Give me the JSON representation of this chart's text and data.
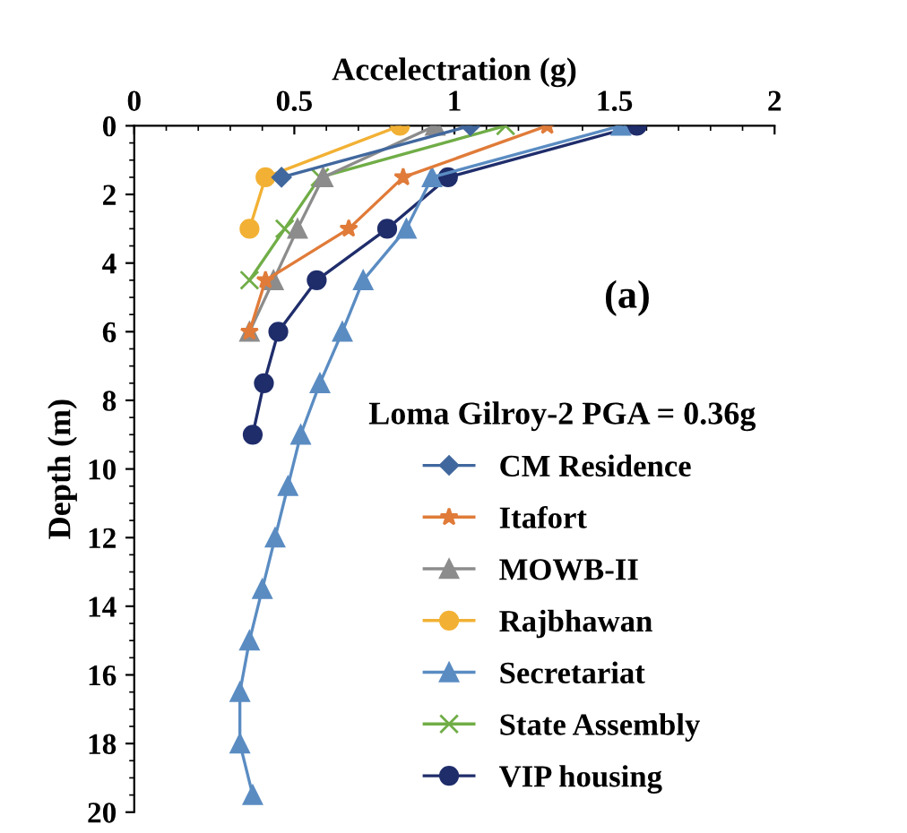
{
  "chart_data": {
    "type": "line",
    "xlabel": "Accelectration (g)",
    "ylabel": "Depth (m)",
    "legend_title": "Loma Gilroy-2 PGA = 0.36g",
    "annotations": [
      "(a)"
    ],
    "xlim": [
      0,
      2
    ],
    "xticks": [
      0,
      0.5,
      1,
      1.5,
      2
    ],
    "ylim": [
      20,
      0
    ],
    "yticks": [
      0,
      2,
      4,
      6,
      8,
      10,
      12,
      14,
      16,
      18,
      20
    ],
    "grid": false,
    "legend": "bottom right",
    "series": [
      {
        "name": "CM Residence",
        "color": "#41689e",
        "marker": "diamond",
        "x": [
          1.05,
          0.46
        ],
        "values": [
          0,
          1.5
        ]
      },
      {
        "name": "Itafort",
        "color": "#e07b39",
        "marker": "star",
        "x": [
          1.29,
          0.84,
          0.67,
          0.41,
          0.36
        ],
        "values": [
          0,
          1.5,
          3,
          4.5,
          6
        ]
      },
      {
        "name": "MOWB-II",
        "color": "#8c8c8c",
        "marker": "triangle",
        "x": [
          0.94,
          0.59,
          0.51,
          0.435,
          0.36
        ],
        "values": [
          0,
          1.5,
          3,
          4.5,
          6
        ]
      },
      {
        "name": "Rajbhawan",
        "color": "#f2b134",
        "marker": "circle",
        "x": [
          0.83,
          0.41,
          0.36
        ],
        "values": [
          0,
          1.5,
          3
        ]
      },
      {
        "name": "Secretariat",
        "color": "#5a8cc2",
        "marker": "triangle",
        "x": [
          1.52,
          0.93,
          0.85,
          0.715,
          0.65,
          0.58,
          0.52,
          0.48,
          0.44,
          0.4,
          0.36,
          0.33,
          0.33,
          0.37
        ],
        "values": [
          0,
          1.5,
          3,
          4.5,
          6,
          7.5,
          9,
          10.5,
          12,
          13.5,
          15,
          16.5,
          18,
          19.5
        ]
      },
      {
        "name": "State Assembly",
        "color": "#70ad47",
        "marker": "cross",
        "x": [
          1.16,
          0.58,
          0.47,
          0.36
        ],
        "values": [
          0,
          1.5,
          3,
          4.5
        ]
      },
      {
        "name": "VIP housing",
        "color": "#1f2d6b",
        "marker": "circle",
        "x": [
          1.57,
          0.98,
          0.79,
          0.57,
          0.45,
          0.405,
          0.37
        ],
        "values": [
          0,
          1.5,
          3,
          4.5,
          6,
          7.5,
          9
        ]
      }
    ]
  }
}
